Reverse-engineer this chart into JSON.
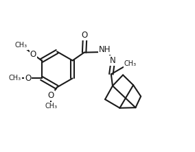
{
  "bg": "#ffffff",
  "lc": "#1a1a1a",
  "lw": 1.5,
  "fs": 8.5,
  "fs_small": 7.0,
  "xlim": [
    0,
    10
  ],
  "ylim": [
    0,
    8
  ]
}
